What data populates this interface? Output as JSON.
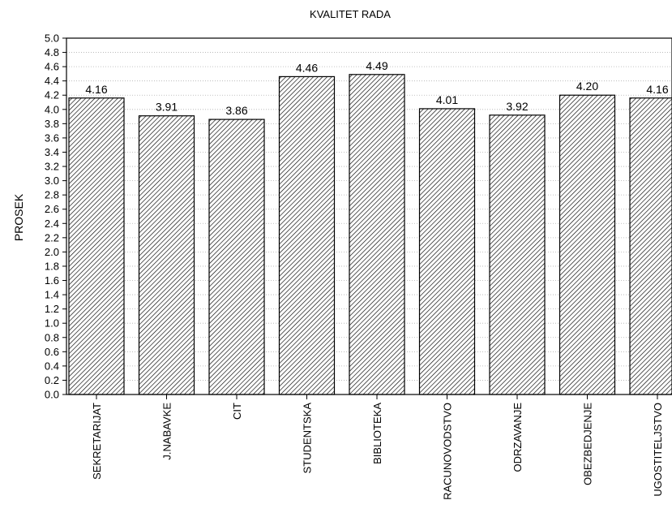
{
  "chart_data": {
    "type": "bar",
    "title": "KVALITET RADA",
    "xlabel": "",
    "ylabel": "PROSEK",
    "ylim": [
      0,
      5
    ],
    "ytick_step": 0.2,
    "grid": true,
    "categories": [
      "SEKRETARIJAT",
      "J.NABAVKE",
      "CIT",
      "STUDENTSKA",
      "BIBLIOTEKA",
      "RACUNOVODSTVO",
      "ODRZAVANJE",
      "OBEZBEDJENJE",
      "UGOSTITELJSTVO"
    ],
    "values": [
      4.16,
      3.91,
      3.86,
      4.46,
      4.49,
      4.01,
      3.92,
      4.2,
      4.16
    ],
    "data_labels": [
      "4.16",
      "3.91",
      "3.86",
      "4.46",
      "4.49",
      "4.01",
      "3.92",
      "4.20",
      "4.16"
    ],
    "yticks": [
      "0.0",
      "0.2",
      "0.4",
      "0.6",
      "0.8",
      "1.0",
      "1.2",
      "1.4",
      "1.6",
      "1.8",
      "2.0",
      "2.2",
      "2.4",
      "2.6",
      "2.8",
      "3.0",
      "3.2",
      "3.4",
      "3.6",
      "3.8",
      "4.0",
      "4.2",
      "4.4",
      "4.6",
      "4.8",
      "5.0"
    ],
    "bar_fill": "hatched",
    "bar_color": "#000000"
  }
}
